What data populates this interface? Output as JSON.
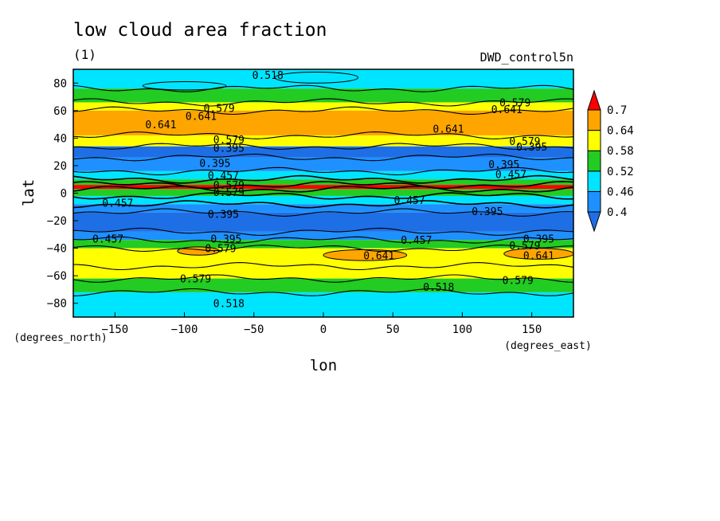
{
  "chart_data": {
    "type": "heatmap",
    "title": "low cloud area fraction",
    "subtitle": "(1)",
    "dataset": "DWD_control5n",
    "xlabel": "lon",
    "ylabel": "lat",
    "xunits": "(degrees_east)",
    "yunits": "(degrees_north)",
    "xlim": [
      -180,
      180
    ],
    "ylim": [
      -90,
      90
    ],
    "xticks": [
      -150,
      -100,
      -50,
      0,
      50,
      100,
      150
    ],
    "yticks": [
      -80,
      -60,
      -40,
      -20,
      0,
      20,
      40,
      60,
      80
    ],
    "colorbar": {
      "levels": [
        0.4,
        0.46,
        0.52,
        0.58,
        0.64,
        0.7
      ],
      "labels": [
        "0.4",
        "0.46",
        "0.52",
        "0.58",
        "0.64",
        "0.7"
      ],
      "colors": [
        "#1e90ff",
        "#00e5ff",
        "#22cc22",
        "#ffff00",
        "#ffa500",
        "#ff0000"
      ],
      "below_color": "#1e6fe6",
      "above_color": "#ff0000"
    },
    "zonal_bands": [
      {
        "lat": [
          76,
          90
        ],
        "color": "#00e5ff"
      },
      {
        "lat": [
          66,
          76
        ],
        "color": "#22cc22"
      },
      {
        "lat": [
          60,
          66
        ],
        "color": "#ffff00"
      },
      {
        "lat": [
          42,
          60
        ],
        "color": "#ffa500"
      },
      {
        "lat": [
          34,
          42
        ],
        "color": "#ffff00"
      },
      {
        "lat": [
          26,
          34
        ],
        "color": "#1e6fe6"
      },
      {
        "lat": [
          16,
          26
        ],
        "color": "#1e90ff"
      },
      {
        "lat": [
          10,
          16
        ],
        "color": "#00e5ff"
      },
      {
        "lat": [
          6,
          10
        ],
        "color": "#22cc22"
      },
      {
        "lat": [
          3,
          6
        ],
        "color": "#ff0000"
      },
      {
        "lat": [
          -2,
          3
        ],
        "color": "#22cc22"
      },
      {
        "lat": [
          -8,
          -2
        ],
        "color": "#00e5ff"
      },
      {
        "lat": [
          -14,
          -8
        ],
        "color": "#1e90ff"
      },
      {
        "lat": [
          -28,
          -14
        ],
        "color": "#1e6fe6"
      },
      {
        "lat": [
          -34,
          -28
        ],
        "color": "#1e90ff"
      },
      {
        "lat": [
          -40,
          -34
        ],
        "color": "#22cc22"
      },
      {
        "lat": [
          -53,
          -40
        ],
        "color": "#ffff00"
      },
      {
        "lat": [
          -62,
          -53
        ],
        "color": "#ffff00"
      },
      {
        "lat": [
          -72,
          -62
        ],
        "color": "#22cc22"
      },
      {
        "lat": [
          -90,
          -72
        ],
        "color": "#00e5ff"
      }
    ],
    "blobs": [
      {
        "lon": 30,
        "lat": -45,
        "rlon": 30,
        "rlat": 4,
        "color": "#ffa500"
      },
      {
        "lon": 155,
        "lat": -44,
        "rlon": 25,
        "rlat": 4,
        "color": "#ffa500"
      },
      {
        "lon": -90,
        "lat": -42,
        "rlon": 15,
        "rlat": 3,
        "color": "#ffa500"
      },
      {
        "lon": -5,
        "lat": 84,
        "rlon": 30,
        "rlat": 4,
        "color": "#00e5ff"
      },
      {
        "lon": -100,
        "lat": 78,
        "rlon": 30,
        "rlat": 3,
        "color": "#00e5ff"
      }
    ],
    "contour_labels": [
      {
        "lon": -40,
        "lat": 86,
        "text": "0.518"
      },
      {
        "lon": -75,
        "lat": 62,
        "text": "0.579"
      },
      {
        "lon": -88,
        "lat": 56,
        "text": "0.641"
      },
      {
        "lon": -117,
        "lat": 50,
        "text": "0.641"
      },
      {
        "lon": 90,
        "lat": 47,
        "text": "0.641"
      },
      {
        "lon": 138,
        "lat": 66,
        "text": "0.579"
      },
      {
        "lon": 132,
        "lat": 61,
        "text": "0.641"
      },
      {
        "lon": -68,
        "lat": 39,
        "text": "0.579"
      },
      {
        "lon": -68,
        "lat": 33,
        "text": "0.395"
      },
      {
        "lon": -78,
        "lat": 22,
        "text": "0.395"
      },
      {
        "lon": -72,
        "lat": 13,
        "text": "0.457"
      },
      {
        "lon": -68,
        "lat": 6,
        "text": "0.579"
      },
      {
        "lon": -68,
        "lat": 1,
        "text": "0.579"
      },
      {
        "lon": -148,
        "lat": -7,
        "text": "0.457"
      },
      {
        "lon": 62,
        "lat": -5,
        "text": "0.457"
      },
      {
        "lon": -72,
        "lat": -15,
        "text": "0.395"
      },
      {
        "lon": 118,
        "lat": -13,
        "text": "0.395"
      },
      {
        "lon": 130,
        "lat": 21,
        "text": "0.395"
      },
      {
        "lon": 135,
        "lat": 14,
        "text": "0.457"
      },
      {
        "lon": 145,
        "lat": 38,
        "text": "0.579"
      },
      {
        "lon": 150,
        "lat": 34,
        "text": "0.395"
      },
      {
        "lon": -155,
        "lat": -33,
        "text": "0.457"
      },
      {
        "lon": 67,
        "lat": -34,
        "text": "0.457"
      },
      {
        "lon": -70,
        "lat": -33,
        "text": "0.395"
      },
      {
        "lon": -74,
        "lat": -40,
        "text": "0.579"
      },
      {
        "lon": 155,
        "lat": -33,
        "text": "0.395"
      },
      {
        "lon": 145,
        "lat": -38,
        "text": "0.579"
      },
      {
        "lon": 155,
        "lat": -45,
        "text": "0.641"
      },
      {
        "lon": 40,
        "lat": -45,
        "text": "0.641"
      },
      {
        "lon": -92,
        "lat": -62,
        "text": "0.579"
      },
      {
        "lon": 83,
        "lat": -68,
        "text": "0.518"
      },
      {
        "lon": 140,
        "lat": -63,
        "text": "0.579"
      },
      {
        "lon": -68,
        "lat": -80,
        "text": "0.518"
      }
    ]
  }
}
